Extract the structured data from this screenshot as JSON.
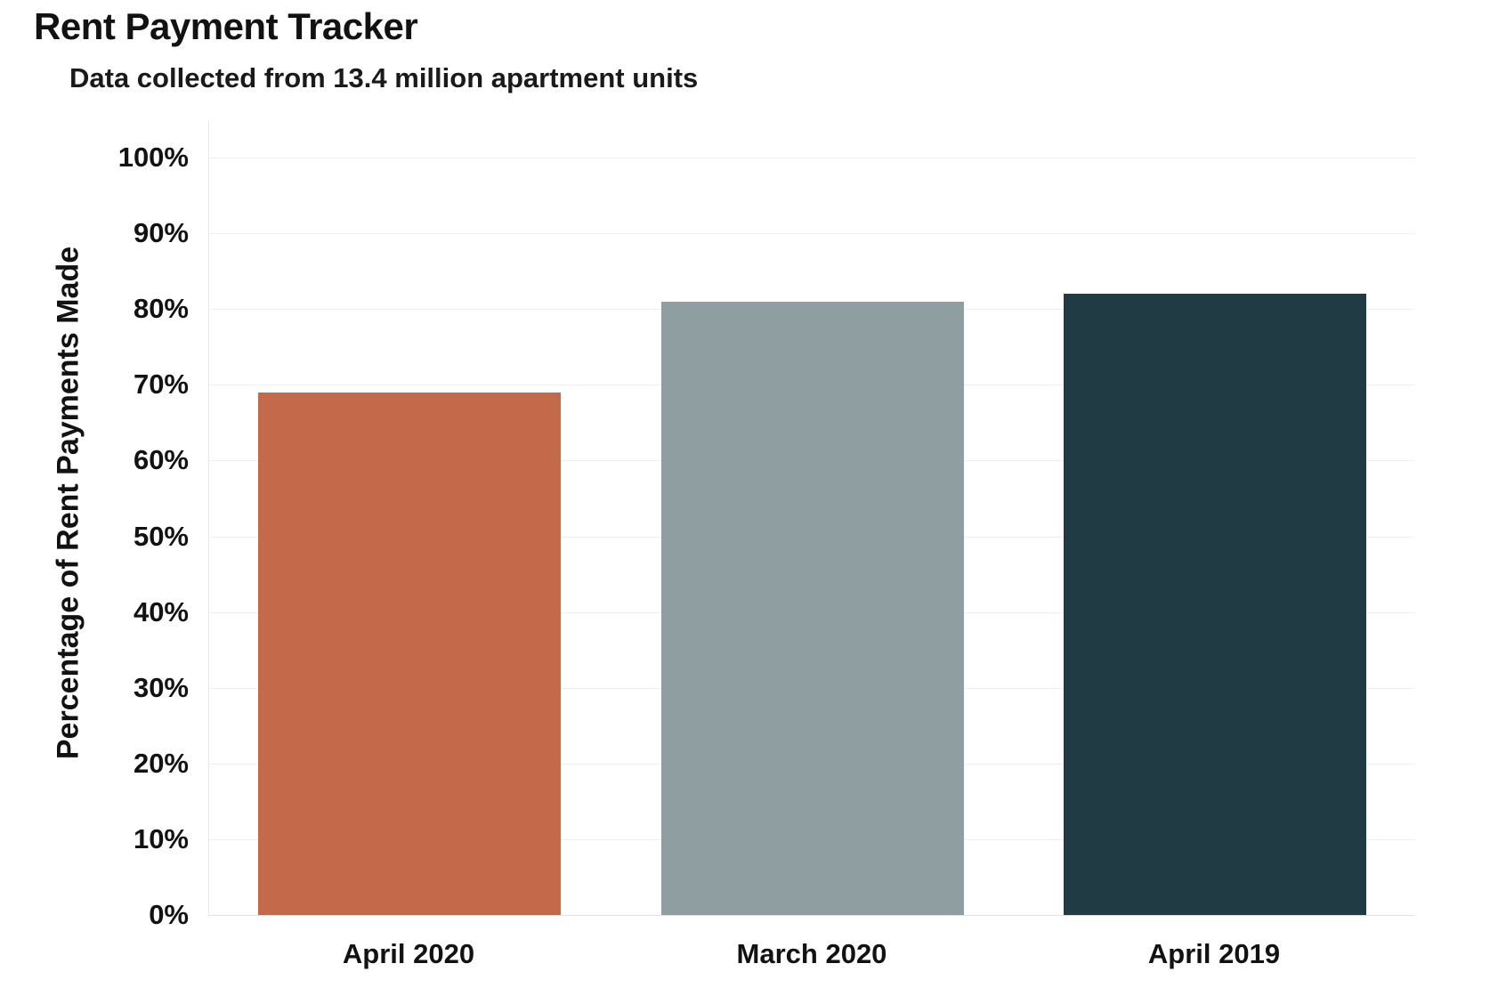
{
  "chart_data": {
    "type": "bar",
    "title": "Rent Payment Tracker",
    "subtitle": "Data collected from 13.4 million apartment units",
    "categories": [
      "April 2020",
      "March 2020",
      "April 2019"
    ],
    "values": [
      69,
      81,
      82
    ],
    "value_unit": "%",
    "bar_colors": [
      "#c46a4b",
      "#8f9ea1",
      "#213b45"
    ],
    "xlabel": "",
    "ylabel": "Percentage of Rent Payments Made",
    "ylim": [
      0,
      100
    ],
    "ytick_step": 10,
    "ytick_labels": [
      "0%",
      "10%",
      "20%",
      "30%",
      "40%",
      "50%",
      "60%",
      "70%",
      "80%",
      "90%",
      "100%"
    ],
    "grid": "horizontal",
    "legend": "none",
    "background_color": "#ffffff",
    "gridline_color": "#efefef",
    "axis_line_color": "#e0e0e0",
    "text_color": "#121212"
  }
}
